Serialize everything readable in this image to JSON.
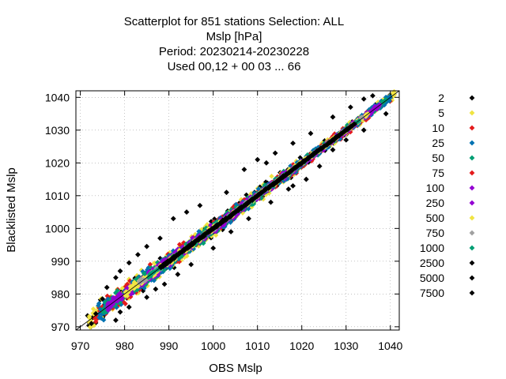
{
  "chart_data": {
    "type": "scatter",
    "title_lines": [
      "Scatterplot for  851 stations Selection: ALL",
      "Mslp [hPa]",
      "Period: 20230214-20230228",
      "Used  00,12  + 00 03 ... 66"
    ],
    "xlabel": "OBS Mslp",
    "ylabel": "Blacklisted Mslp",
    "xlim": [
      969,
      1042
    ],
    "ylim": [
      969,
      1042
    ],
    "xticks": [
      970,
      980,
      990,
      1000,
      1010,
      1020,
      1030,
      1040
    ],
    "yticks": [
      970,
      980,
      990,
      1000,
      1010,
      1020,
      1030,
      1040
    ],
    "grid": true,
    "legend_position": "right",
    "marker": "diamond",
    "legend": [
      {
        "label": "2",
        "color": "#000000"
      },
      {
        "label": "5",
        "color": "#f0e442"
      },
      {
        "label": "10",
        "color": "#e41a1c"
      },
      {
        "label": "25",
        "color": "#0072b2"
      },
      {
        "label": "50",
        "color": "#009e73"
      },
      {
        "label": "75",
        "color": "#e41a1c"
      },
      {
        "label": "100",
        "color": "#9400d3"
      },
      {
        "label": "250",
        "color": "#9400d3"
      },
      {
        "label": "500",
        "color": "#f0e442"
      },
      {
        "label": "750",
        "color": "#a0a0a0"
      },
      {
        "label": "1000",
        "color": "#009e73"
      },
      {
        "label": "2500",
        "color": "#000000"
      },
      {
        "label": "5000",
        "color": "#000000"
      },
      {
        "label": "7500",
        "color": "#000000"
      }
    ],
    "density_bands": [
      {
        "color": "#000000",
        "x_range": [
          971,
          1041
        ],
        "half_width_start": 5.5,
        "half_width_end": 1.5,
        "count": 210
      },
      {
        "color": "#f0e442",
        "x_range": [
          972,
          1041
        ],
        "half_width_start": 4.8,
        "half_width_end": 1.8,
        "count": 420
      },
      {
        "color": "#e41a1c",
        "x_range": [
          973,
          1040
        ],
        "half_width_start": 4.2,
        "half_width_end": 1.5,
        "count": 420
      },
      {
        "color": "#0072b2",
        "x_range": [
          974,
          1040
        ],
        "half_width_start": 3.8,
        "half_width_end": 1.3,
        "count": 520
      },
      {
        "color": "#009e73",
        "x_range": [
          975,
          1039
        ],
        "half_width_start": 3.3,
        "half_width_end": 1.1,
        "count": 520
      },
      {
        "color": "#9400d3",
        "x_range": [
          976,
          1038
        ],
        "half_width_start": 2.6,
        "half_width_end": 0.9,
        "count": 560
      },
      {
        "color": "#f0e442",
        "x_range": [
          980,
          1035
        ],
        "half_width_start": 1.6,
        "half_width_end": 0.7,
        "count": 320
      },
      {
        "color": "#a0a0a0",
        "x_range": [
          983,
          1034
        ],
        "half_width_start": 1.1,
        "half_width_end": 0.5,
        "count": 200
      },
      {
        "color": "#009e73",
        "x_range": [
          985,
          1033
        ],
        "half_width_start": 0.9,
        "half_width_end": 0.4,
        "count": 200
      },
      {
        "color": "#000000",
        "x_range": [
          988,
          1032
        ],
        "half_width_start": 0.55,
        "half_width_end": 0.3,
        "count": 650
      }
    ],
    "outliers": [
      [
        975,
        978.5
      ],
      [
        976,
        982
      ],
      [
        978,
        985
      ],
      [
        979,
        987
      ],
      [
        981,
        989.5
      ],
      [
        983,
        992
      ],
      [
        985,
        994.5
      ],
      [
        988,
        997
      ],
      [
        991,
        1003
      ],
      [
        994,
        1005
      ],
      [
        997,
        1007
      ],
      [
        1003,
        1011
      ],
      [
        1007,
        1018
      ],
      [
        1010,
        1021
      ],
      [
        1012,
        1020
      ],
      [
        1014,
        1023
      ],
      [
        1018,
        1026
      ],
      [
        1022,
        1029
      ],
      [
        1027,
        1034
      ],
      [
        1031,
        1037
      ],
      [
        1034,
        1039.5
      ],
      [
        1036,
        1040.5
      ],
      [
        979,
        974.5
      ],
      [
        981,
        976
      ],
      [
        985,
        979
      ],
      [
        989,
        983
      ],
      [
        992,
        986
      ],
      [
        995,
        989
      ],
      [
        1000,
        994
      ],
      [
        1004,
        999
      ],
      [
        1008,
        1003
      ],
      [
        1013,
        1008
      ],
      [
        1017,
        1012
      ],
      [
        1021,
        1015
      ],
      [
        1024,
        1019
      ],
      [
        1027,
        1024
      ],
      [
        1030,
        1027
      ],
      [
        1034,
        1030
      ],
      [
        972.5,
        971
      ],
      [
        973.5,
        974
      ],
      [
        978,
        972
      ],
      [
        987,
        981.5
      ],
      [
        1018,
        1013
      ],
      [
        1039,
        1035
      ]
    ]
  }
}
